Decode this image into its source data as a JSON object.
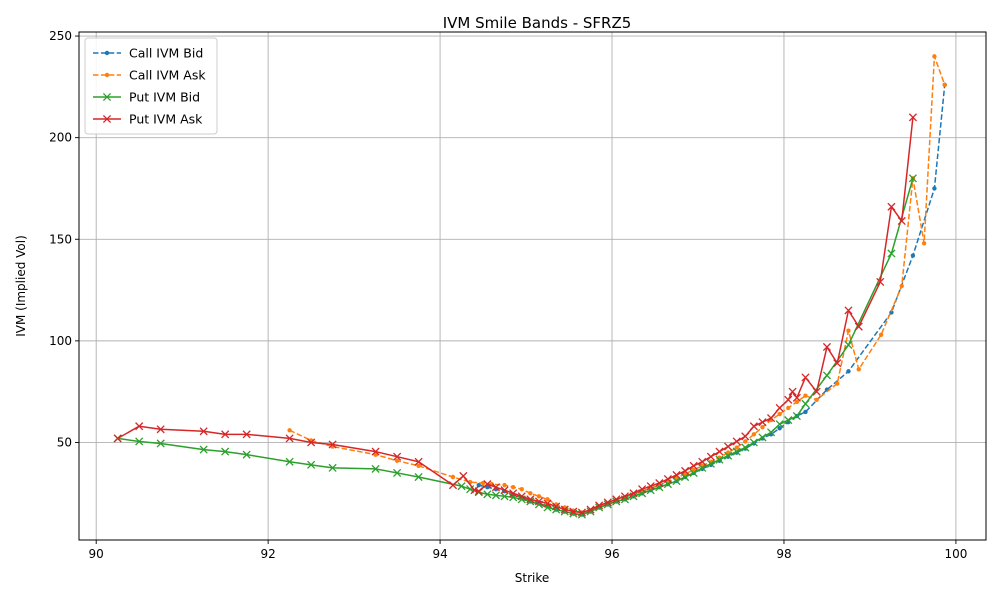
{
  "chart_data": {
    "type": "line",
    "title": "IVM Smile Bands - SFRZ5",
    "xlabel": "Strike",
    "ylabel": "IVM (Implied Vol)",
    "xlim": [
      89.8,
      100.35
    ],
    "ylim": [
      2,
      252
    ],
    "xticks": [
      90,
      92,
      94,
      96,
      98,
      100
    ],
    "yticks": [
      50,
      100,
      150,
      200,
      250
    ],
    "grid": true,
    "legend_position": "top-left",
    "series": [
      {
        "name": "Call IVM Bid",
        "color": "#1f77b4",
        "dash": "dashed",
        "marker": "dot",
        "points": [
          [
            94.45,
            29
          ],
          [
            94.55,
            28
          ],
          [
            94.65,
            27
          ],
          [
            94.75,
            26
          ],
          [
            94.85,
            24
          ],
          [
            94.95,
            23
          ],
          [
            95.05,
            21
          ],
          [
            95.15,
            20
          ],
          [
            95.25,
            18.5
          ],
          [
            95.35,
            17
          ],
          [
            95.45,
            16
          ],
          [
            95.55,
            15
          ],
          [
            95.65,
            14.5
          ],
          [
            95.75,
            16
          ],
          [
            95.85,
            18
          ],
          [
            95.95,
            19.5
          ],
          [
            96.05,
            21
          ],
          [
            96.15,
            22
          ],
          [
            96.25,
            23.5
          ],
          [
            96.35,
            25
          ],
          [
            96.45,
            26.5
          ],
          [
            96.55,
            28
          ],
          [
            96.65,
            29.5
          ],
          [
            96.75,
            31
          ],
          [
            96.85,
            33
          ],
          [
            96.95,
            35
          ],
          [
            97.05,
            37
          ],
          [
            97.15,
            39
          ],
          [
            97.25,
            41
          ],
          [
            97.35,
            43
          ],
          [
            97.45,
            45
          ],
          [
            97.55,
            47
          ],
          [
            97.65,
            49.5
          ],
          [
            97.75,
            52
          ],
          [
            97.85,
            54
          ],
          [
            97.95,
            57
          ],
          [
            98.05,
            60
          ],
          [
            98.15,
            63
          ],
          [
            98.25,
            65
          ],
          [
            98.5,
            76
          ],
          [
            98.75,
            85
          ],
          [
            99.25,
            114
          ],
          [
            99.5,
            142
          ],
          [
            99.75,
            175
          ],
          [
            99.87,
            226
          ]
        ]
      },
      {
        "name": "Call IVM Ask",
        "color": "#ff7f0e",
        "dash": "dashed",
        "marker": "dot",
        "points": [
          [
            92.25,
            56
          ],
          [
            92.5,
            51
          ],
          [
            92.75,
            48
          ],
          [
            93.25,
            44
          ],
          [
            93.5,
            41
          ],
          [
            93.75,
            38.5
          ],
          [
            94.15,
            33
          ],
          [
            94.35,
            30.5
          ],
          [
            94.5,
            30
          ],
          [
            94.6,
            29.5
          ],
          [
            94.75,
            29
          ],
          [
            94.85,
            28
          ],
          [
            94.95,
            27
          ],
          [
            95.05,
            25
          ],
          [
            95.15,
            23.5
          ],
          [
            95.25,
            22
          ],
          [
            95.35,
            19.5
          ],
          [
            95.45,
            18
          ],
          [
            95.55,
            16.5
          ],
          [
            95.65,
            15.5
          ],
          [
            95.75,
            16.5
          ],
          [
            95.85,
            18.5
          ],
          [
            95.95,
            20
          ],
          [
            96.05,
            21.5
          ],
          [
            96.15,
            23
          ],
          [
            96.25,
            24.5
          ],
          [
            96.35,
            26
          ],
          [
            96.45,
            27.5
          ],
          [
            96.55,
            29
          ],
          [
            96.65,
            31
          ],
          [
            96.75,
            32.5
          ],
          [
            96.85,
            34.5
          ],
          [
            96.95,
            36.5
          ],
          [
            97.05,
            38.5
          ],
          [
            97.15,
            40.5
          ],
          [
            97.25,
            42.5
          ],
          [
            97.35,
            45
          ],
          [
            97.45,
            47.5
          ],
          [
            97.55,
            50.5
          ],
          [
            97.65,
            54
          ],
          [
            97.75,
            57.5
          ],
          [
            97.85,
            61
          ],
          [
            97.95,
            64
          ],
          [
            98.05,
            67
          ],
          [
            98.15,
            70
          ],
          [
            98.25,
            73
          ],
          [
            98.38,
            71
          ],
          [
            98.62,
            79
          ],
          [
            98.75,
            105
          ],
          [
            98.87,
            86
          ],
          [
            99.13,
            103
          ],
          [
            99.37,
            127
          ],
          [
            99.5,
            180
          ],
          [
            99.63,
            148
          ],
          [
            99.75,
            240
          ],
          [
            99.87,
            226
          ]
        ]
      },
      {
        "name": "Put IVM Bid",
        "color": "#2ca02c",
        "dash": "solid",
        "marker": "x",
        "points": [
          [
            90.25,
            52
          ],
          [
            90.5,
            50.5
          ],
          [
            90.75,
            49.5
          ],
          [
            91.25,
            46.5
          ],
          [
            91.5,
            45.5
          ],
          [
            91.75,
            44
          ],
          [
            92.25,
            40.5
          ],
          [
            92.5,
            39
          ],
          [
            92.75,
            37.5
          ],
          [
            93.25,
            37
          ],
          [
            93.5,
            35
          ],
          [
            93.75,
            33
          ],
          [
            94.25,
            28.5
          ],
          [
            94.35,
            27
          ],
          [
            94.45,
            25.5
          ],
          [
            94.55,
            24.5
          ],
          [
            94.65,
            24
          ],
          [
            94.75,
            23.5
          ],
          [
            94.85,
            23
          ],
          [
            94.95,
            22
          ],
          [
            95.05,
            21
          ],
          [
            95.15,
            19.5
          ],
          [
            95.25,
            18
          ],
          [
            95.35,
            17
          ],
          [
            95.45,
            16
          ],
          [
            95.55,
            15
          ],
          [
            95.65,
            14.5
          ],
          [
            95.75,
            16
          ],
          [
            95.85,
            18
          ],
          [
            95.95,
            19.5
          ],
          [
            96.05,
            21
          ],
          [
            96.15,
            22
          ],
          [
            96.25,
            23.5
          ],
          [
            96.35,
            25
          ],
          [
            96.45,
            26.5
          ],
          [
            96.55,
            28
          ],
          [
            96.65,
            29.5
          ],
          [
            96.75,
            31
          ],
          [
            96.85,
            33
          ],
          [
            96.95,
            35
          ],
          [
            97.05,
            37.5
          ],
          [
            97.15,
            39.5
          ],
          [
            97.25,
            41.5
          ],
          [
            97.35,
            43.5
          ],
          [
            97.45,
            45.5
          ],
          [
            97.55,
            47.5
          ],
          [
            97.65,
            50
          ],
          [
            97.75,
            52.5
          ],
          [
            97.85,
            55
          ],
          [
            97.95,
            59
          ],
          [
            98.05,
            61
          ],
          [
            98.15,
            63
          ],
          [
            98.25,
            69
          ],
          [
            98.5,
            83
          ],
          [
            98.75,
            98
          ],
          [
            99.25,
            143
          ],
          [
            99.5,
            180
          ]
        ]
      },
      {
        "name": "Put IVM Ask",
        "color": "#d62728",
        "dash": "solid",
        "marker": "x",
        "points": [
          [
            90.25,
            52
          ],
          [
            90.5,
            58
          ],
          [
            90.75,
            56.5
          ],
          [
            91.25,
            55.5
          ],
          [
            91.5,
            54
          ],
          [
            91.75,
            54
          ],
          [
            92.25,
            52
          ],
          [
            92.5,
            50
          ],
          [
            92.75,
            49
          ],
          [
            93.25,
            45.5
          ],
          [
            93.5,
            43
          ],
          [
            93.75,
            40.5
          ],
          [
            94.15,
            29
          ],
          [
            94.27,
            33.5
          ],
          [
            94.4,
            26.5
          ],
          [
            94.45,
            26
          ],
          [
            94.55,
            29.5
          ],
          [
            94.65,
            28
          ],
          [
            94.75,
            26.5
          ],
          [
            94.85,
            25
          ],
          [
            94.95,
            23.5
          ],
          [
            95.05,
            22
          ],
          [
            95.15,
            21
          ],
          [
            95.25,
            20
          ],
          [
            95.35,
            18.5
          ],
          [
            95.45,
            17
          ],
          [
            95.55,
            16
          ],
          [
            95.65,
            15.5
          ],
          [
            95.75,
            17
          ],
          [
            95.85,
            19
          ],
          [
            95.95,
            20.5
          ],
          [
            96.05,
            22
          ],
          [
            96.15,
            23.5
          ],
          [
            96.25,
            25
          ],
          [
            96.35,
            27
          ],
          [
            96.45,
            28.5
          ],
          [
            96.55,
            30
          ],
          [
            96.65,
            32
          ],
          [
            96.75,
            34
          ],
          [
            96.85,
            36
          ],
          [
            96.95,
            38.5
          ],
          [
            97.05,
            40.5
          ],
          [
            97.15,
            43
          ],
          [
            97.25,
            45.5
          ],
          [
            97.35,
            48
          ],
          [
            97.45,
            50.5
          ],
          [
            97.55,
            53
          ],
          [
            97.65,
            58
          ],
          [
            97.75,
            60
          ],
          [
            97.85,
            62
          ],
          [
            97.95,
            67
          ],
          [
            98.05,
            71
          ],
          [
            98.1,
            75
          ],
          [
            98.15,
            72
          ],
          [
            98.25,
            82
          ],
          [
            98.38,
            75
          ],
          [
            98.5,
            97
          ],
          [
            98.62,
            89
          ],
          [
            98.75,
            115
          ],
          [
            98.87,
            107
          ],
          [
            99.12,
            129
          ],
          [
            99.25,
            166
          ],
          [
            99.37,
            159
          ],
          [
            99.5,
            210
          ]
        ]
      }
    ]
  }
}
